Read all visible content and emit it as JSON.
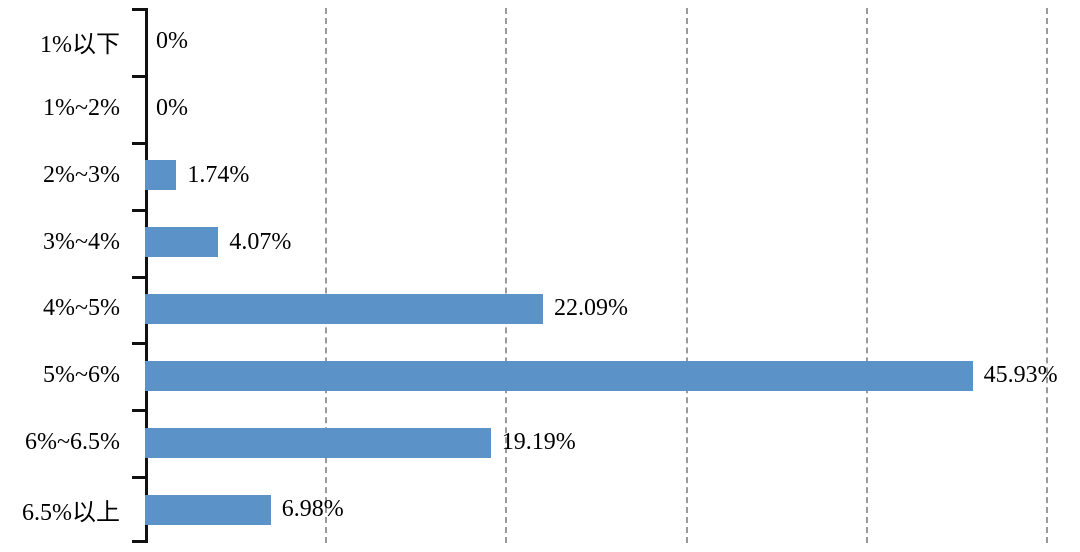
{
  "chart_data": {
    "type": "bar",
    "orientation": "horizontal",
    "title": "",
    "xlabel": "",
    "ylabel": "",
    "categories": [
      "1%以下",
      "1%~2%",
      "2%~3%",
      "3%~4%",
      "4%~5%",
      "5%~6%",
      "6%~6.5%",
      "6.5%以上"
    ],
    "values": [
      0,
      0,
      1.74,
      4.07,
      22.09,
      45.93,
      19.19,
      6.98
    ],
    "value_labels": [
      "0%",
      "0%",
      "1.74%",
      "4.07%",
      "22.09%",
      "45.93%",
      "19.19%",
      "6.98%"
    ],
    "xlim": [
      0,
      50
    ],
    "gridlines_percent": [
      10,
      20,
      30,
      40,
      50
    ],
    "grid_style": "vertical-dashed",
    "legend": "none",
    "colors": {
      "bar": "#5B93C8",
      "gridline": "#9A9A9A",
      "axis": "#111111",
      "text": "#000000",
      "background": "#FFFFFF"
    }
  }
}
